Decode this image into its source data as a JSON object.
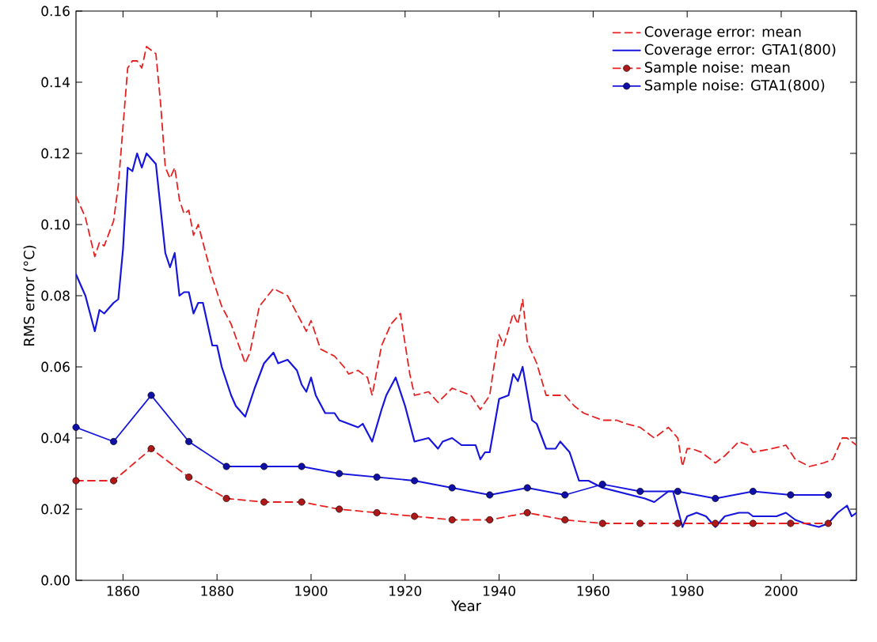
{
  "chart_data": {
    "type": "line",
    "xlabel": "Year",
    "ylabel": "RMS error (°C)",
    "xlim": [
      1850,
      2016
    ],
    "ylim": [
      0,
      0.16
    ],
    "xticks": [
      1860,
      1880,
      1900,
      1920,
      1940,
      1960,
      1980,
      2000
    ],
    "yticks": [
      {
        "value": 0,
        "label": "0.00"
      },
      {
        "value": 0.02,
        "label": "0.02"
      },
      {
        "value": 0.04,
        "label": "0.04"
      },
      {
        "value": 0.06,
        "label": "0.06"
      },
      {
        "value": 0.08,
        "label": "0.08"
      },
      {
        "value": 0.1,
        "label": "0.10"
      },
      {
        "value": 0.12,
        "label": "0.12"
      },
      {
        "value": 0.14,
        "label": "0.14"
      },
      {
        "value": 0.16,
        "label": "0.16"
      }
    ],
    "grid": false,
    "legend": "top right",
    "series": [
      {
        "name": "Coverage error: mean",
        "color": "#e82020",
        "line_style": "dashed",
        "marker": "none",
        "x": [
          1850,
          1852,
          1854,
          1855,
          1856,
          1858,
          1859,
          1861,
          1862,
          1863,
          1864,
          1865,
          1866,
          1867,
          1868,
          1869,
          1870,
          1871,
          1872,
          1873,
          1874,
          1875,
          1876,
          1877,
          1879,
          1881,
          1883,
          1886,
          1887,
          1889,
          1892,
          1895,
          1897,
          1899,
          1900,
          1902,
          1905,
          1907,
          1908,
          1910,
          1912,
          1913,
          1915,
          1917,
          1919,
          1921,
          1922,
          1925,
          1927,
          1930,
          1932,
          1934,
          1936,
          1938,
          1939,
          1940,
          1941,
          1943,
          1944,
          1945,
          1946,
          1948,
          1950,
          1952,
          1954,
          1956,
          1958,
          1962,
          1965,
          1967,
          1970,
          1973,
          1976,
          1978,
          1979,
          1980,
          1981,
          1983,
          1986,
          1988,
          1991,
          1993,
          1994,
          1998,
          2001,
          2003,
          2006,
          2009,
          2011,
          2013,
          2014,
          2016
        ],
        "values": [
          0.108,
          0.102,
          0.091,
          0.095,
          0.094,
          0.101,
          0.111,
          0.144,
          0.146,
          0.146,
          0.144,
          0.15,
          0.149,
          0.148,
          0.134,
          0.116,
          0.113,
          0.116,
          0.107,
          0.103,
          0.104,
          0.097,
          0.1,
          0.095,
          0.085,
          0.077,
          0.072,
          0.061,
          0.064,
          0.077,
          0.082,
          0.08,
          0.075,
          0.07,
          0.073,
          0.065,
          0.063,
          0.06,
          0.058,
          0.059,
          0.057,
          0.052,
          0.066,
          0.072,
          0.075,
          0.058,
          0.052,
          0.053,
          0.05,
          0.054,
          0.053,
          0.052,
          0.048,
          0.052,
          0.061,
          0.069,
          0.066,
          0.075,
          0.072,
          0.079,
          0.067,
          0.061,
          0.052,
          0.052,
          0.052,
          0.049,
          0.047,
          0.045,
          0.045,
          0.044,
          0.043,
          0.04,
          0.043,
          0.04,
          0.032,
          0.037,
          0.037,
          0.036,
          0.033,
          0.035,
          0.039,
          0.038,
          0.036,
          0.037,
          0.038,
          0.034,
          0.032,
          0.033,
          0.034,
          0.04,
          0.04,
          0.038
        ]
      },
      {
        "name": "Coverage error: GTA1(800)",
        "color": "#1515dd",
        "line_style": "solid",
        "marker": "none",
        "x": [
          1850,
          1852,
          1853,
          1854,
          1855,
          1856,
          1858,
          1859,
          1860,
          1861,
          1862,
          1863,
          1864,
          1865,
          1867,
          1869,
          1870,
          1871,
          1872,
          1873,
          1874,
          1875,
          1876,
          1877,
          1879,
          1880,
          1881,
          1883,
          1884,
          1886,
          1888,
          1890,
          1892,
          1893,
          1895,
          1897,
          1898,
          1899,
          1900,
          1901,
          1903,
          1905,
          1906,
          1908,
          1910,
          1911,
          1913,
          1915,
          1916,
          1918,
          1920,
          1922,
          1925,
          1927,
          1928,
          1930,
          1932,
          1935,
          1936,
          1937,
          1938,
          1940,
          1942,
          1943,
          1944,
          1945,
          1947,
          1948,
          1950,
          1952,
          1953,
          1955,
          1957,
          1959,
          1962,
          1965,
          1968,
          1971,
          1973,
          1976,
          1977,
          1979,
          1980,
          1982,
          1984,
          1986,
          1988,
          1991,
          1993,
          1994,
          1997,
          1999,
          2001,
          2003,
          2005,
          2008,
          2010,
          2012,
          2014,
          2015,
          2016
        ],
        "values": [
          0.086,
          0.08,
          0.075,
          0.07,
          0.076,
          0.075,
          0.078,
          0.079,
          0.093,
          0.116,
          0.115,
          0.12,
          0.116,
          0.12,
          0.117,
          0.092,
          0.088,
          0.092,
          0.08,
          0.081,
          0.081,
          0.075,
          0.078,
          0.078,
          0.066,
          0.066,
          0.06,
          0.052,
          0.049,
          0.046,
          0.054,
          0.061,
          0.064,
          0.061,
          0.062,
          0.059,
          0.055,
          0.053,
          0.057,
          0.052,
          0.047,
          0.047,
          0.045,
          0.044,
          0.043,
          0.044,
          0.039,
          0.048,
          0.052,
          0.057,
          0.049,
          0.039,
          0.04,
          0.037,
          0.039,
          0.04,
          0.038,
          0.038,
          0.034,
          0.036,
          0.036,
          0.051,
          0.052,
          0.058,
          0.056,
          0.06,
          0.045,
          0.044,
          0.037,
          0.037,
          0.039,
          0.036,
          0.028,
          0.028,
          0.026,
          0.025,
          0.024,
          0.023,
          0.022,
          0.025,
          0.025,
          0.015,
          0.018,
          0.019,
          0.018,
          0.015,
          0.018,
          0.019,
          0.019,
          0.018,
          0.018,
          0.018,
          0.019,
          0.017,
          0.016,
          0.015,
          0.016,
          0.019,
          0.021,
          0.018,
          0.019
        ]
      },
      {
        "name": "Sample noise: mean",
        "color": "#e82020",
        "line_style": "dashed",
        "marker": "circle",
        "x": [
          1850,
          1858,
          1866,
          1874,
          1882,
          1890,
          1898,
          1906,
          1914,
          1922,
          1930,
          1938,
          1946,
          1954,
          1962,
          1970,
          1978,
          1986,
          1994,
          2002,
          2010
        ],
        "values": [
          0.028,
          0.028,
          0.037,
          0.029,
          0.023,
          0.022,
          0.022,
          0.02,
          0.019,
          0.018,
          0.017,
          0.017,
          0.019,
          0.017,
          0.016,
          0.016,
          0.016,
          0.016,
          0.016,
          0.016,
          0.016
        ]
      },
      {
        "name": "Sample noise: GTA1(800)",
        "color": "#1515dd",
        "line_style": "solid",
        "marker": "circle",
        "x": [
          1850,
          1858,
          1866,
          1874,
          1882,
          1890,
          1898,
          1906,
          1914,
          1922,
          1930,
          1938,
          1946,
          1954,
          1962,
          1970,
          1978,
          1986,
          1994,
          2002,
          2010
        ],
        "values": [
          0.043,
          0.039,
          0.052,
          0.039,
          0.032,
          0.032,
          0.032,
          0.03,
          0.029,
          0.028,
          0.026,
          0.024,
          0.026,
          0.024,
          0.027,
          0.025,
          0.025,
          0.023,
          0.025,
          0.024,
          0.024
        ]
      }
    ]
  }
}
